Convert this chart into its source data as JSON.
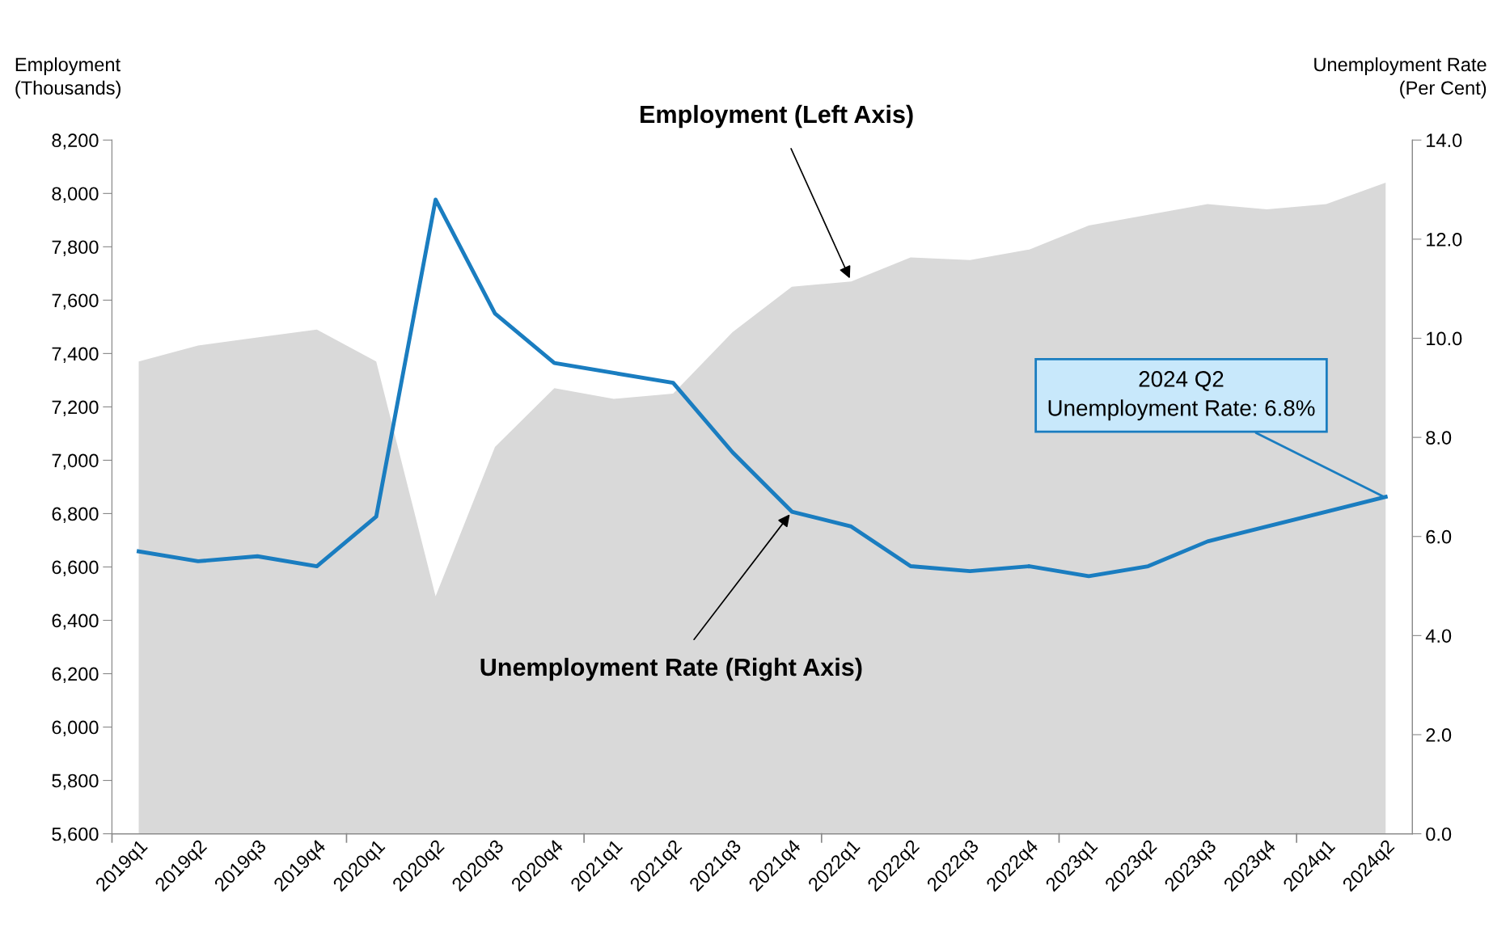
{
  "chart_data": {
    "type": "area",
    "categories": [
      "2019q1",
      "2019q2",
      "2019q3",
      "2019q4",
      "2020q1",
      "2020q2",
      "2020q3",
      "2020q4",
      "2021q1",
      "2021q2",
      "2021q3",
      "2021q4",
      "2022q1",
      "2022q2",
      "2022q3",
      "2022q4",
      "2023q1",
      "2023q2",
      "2023q3",
      "2023q4",
      "2024q1",
      "2024q2"
    ],
    "series": [
      {
        "name": "Employment (Left Axis)",
        "color": "#d9d9d9",
        "values": [
          7370,
          7430,
          7460,
          7490,
          7370,
          6490,
          7050,
          7270,
          7230,
          7250,
          7480,
          7650,
          7670,
          7760,
          7750,
          7790,
          7880,
          7920,
          7960,
          7940,
          7960,
          8040
        ]
      },
      {
        "name": "Unemployment Rate (Right Axis)",
        "type": "line",
        "axis": "y2",
        "color": "#1a7dc0",
        "values": [
          5.7,
          5.5,
          5.6,
          5.4,
          6.4,
          12.8,
          10.5,
          9.5,
          9.3,
          9.1,
          7.7,
          6.5,
          6.2,
          5.4,
          5.3,
          5.4,
          5.2,
          5.4,
          5.9,
          6.2,
          6.5,
          6.8
        ]
      }
    ],
    "ylabel": "Employment\n(Thousands)",
    "y2label": "Unemployment Rate\n(Per Cent)",
    "ylim": [
      5600,
      8200
    ],
    "yticks": [
      {
        "value": 5600,
        "label": "5,600"
      },
      {
        "value": 5800,
        "label": "5,800"
      },
      {
        "value": 6000,
        "label": "6,000"
      },
      {
        "value": 6200,
        "label": "6,200"
      },
      {
        "value": 6400,
        "label": "6,400"
      },
      {
        "value": 6600,
        "label": "6,600"
      },
      {
        "value": 6800,
        "label": "6,800"
      },
      {
        "value": 7000,
        "label": "7,000"
      },
      {
        "value": 7200,
        "label": "7,200"
      },
      {
        "value": 7400,
        "label": "7,400"
      },
      {
        "value": 7600,
        "label": "7,600"
      },
      {
        "value": 7800,
        "label": "7,800"
      },
      {
        "value": 8000,
        "label": "8,000"
      },
      {
        "value": 8200,
        "label": "8,200"
      }
    ],
    "y2lim": [
      0,
      14
    ],
    "y2ticks": [
      {
        "value": 0,
        "label": "0.0"
      },
      {
        "value": 2,
        "label": "2.0"
      },
      {
        "value": 4,
        "label": "4.0"
      },
      {
        "value": 6,
        "label": "6.0"
      },
      {
        "value": 8,
        "label": "8.0"
      },
      {
        "value": 10,
        "label": "10.0"
      },
      {
        "value": 12,
        "label": "12.0"
      },
      {
        "value": 14,
        "label": "14.0"
      }
    ],
    "grid": false,
    "legend": false,
    "annotations": [
      {
        "text": "2024 Q2\nUnemployment Rate: 6.8%",
        "x": "2024q2",
        "y": 6860
      }
    ]
  }
}
